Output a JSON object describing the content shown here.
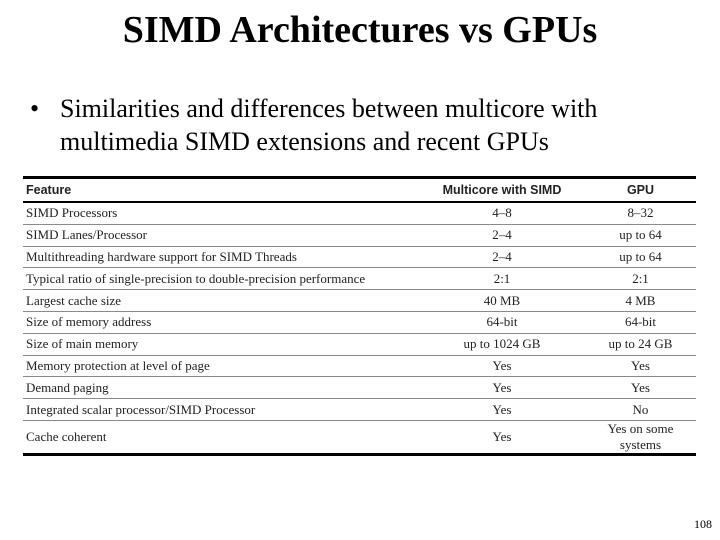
{
  "slide": {
    "title": "SIMD Architectures vs GPUs",
    "bullet": "Similarities and differences between multicore with multimedia SIMD extensions and recent GPUs",
    "bullet_mark": "•",
    "page_number": "108"
  },
  "table": {
    "headers": [
      "Feature",
      "Multicore with SIMD",
      "GPU"
    ],
    "rows": [
      [
        "SIMD Processors",
        "4–8",
        "8–32"
      ],
      [
        "SIMD Lanes/Processor",
        "2–4",
        "up to 64"
      ],
      [
        "Multithreading hardware support for SIMD Threads",
        "2–4",
        "up to 64"
      ],
      [
        "Typical ratio of single-precision to double-precision performance",
        "2:1",
        "2:1"
      ],
      [
        "Largest cache size",
        "40 MB",
        "4 MB"
      ],
      [
        "Size of memory address",
        "64-bit",
        "64-bit"
      ],
      [
        "Size of main memory",
        "up to 1024 GB",
        "up to 24 GB"
      ],
      [
        "Memory protection at level of page",
        "Yes",
        "Yes"
      ],
      [
        "Demand paging",
        "Yes",
        "Yes"
      ],
      [
        "Integrated scalar processor/SIMD Processor",
        "Yes",
        "No"
      ],
      [
        "Cache coherent",
        "Yes",
        "Yes on some systems"
      ]
    ]
  }
}
